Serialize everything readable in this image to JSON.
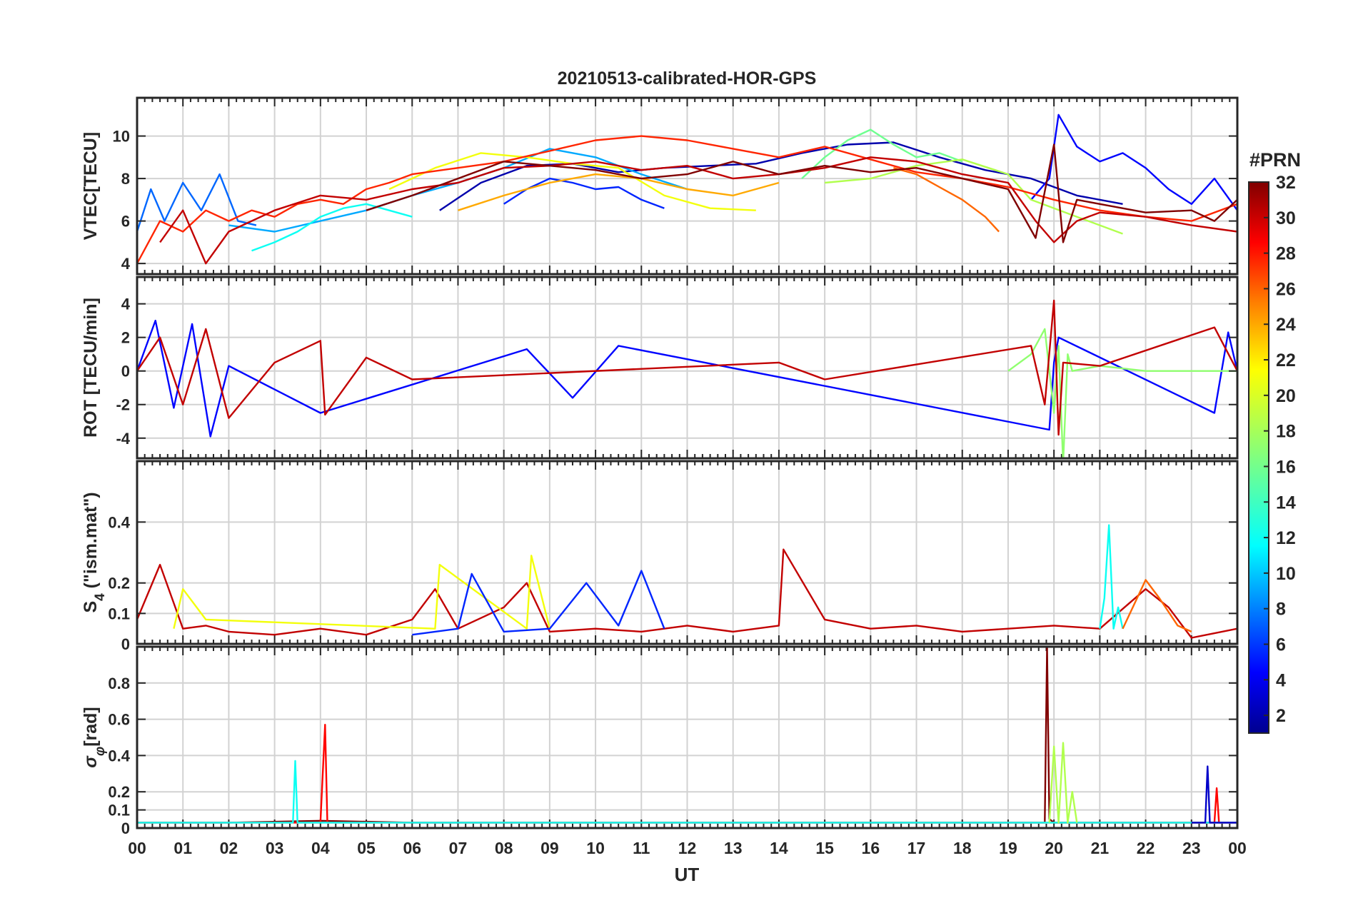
{
  "figure": {
    "title": "20210513-calibrated-HOR-GPS",
    "xlabel": "UT"
  },
  "chart_data": {
    "type": "line",
    "title": "20210513-calibrated-HOR-GPS",
    "xlabel": "UT",
    "xlim": [
      0,
      24
    ],
    "x_ticks": [
      0,
      1,
      2,
      3,
      4,
      5,
      6,
      7,
      8,
      9,
      10,
      11,
      12,
      13,
      14,
      15,
      16,
      17,
      18,
      19,
      20,
      21,
      22,
      23,
      24
    ],
    "x_tick_labels": [
      "00",
      "01",
      "02",
      "03",
      "04",
      "05",
      "06",
      "07",
      "08",
      "09",
      "10",
      "11",
      "12",
      "13",
      "14",
      "15",
      "16",
      "17",
      "18",
      "19",
      "20",
      "21",
      "22",
      "23",
      "00"
    ],
    "grid": true,
    "colorbar": {
      "label": "#PRN",
      "range": [
        1,
        32
      ],
      "ticks": [
        2,
        4,
        6,
        8,
        10,
        12,
        14,
        16,
        18,
        20,
        22,
        24,
        26,
        28,
        30,
        32
      ],
      "tick_labels": [
        "2",
        "4",
        "6",
        "8",
        "10",
        "12",
        "14",
        "16",
        "18",
        "20",
        "22",
        "24",
        "26",
        "28",
        "30",
        "32"
      ],
      "colormap": [
        "#00008f",
        "#0000ff",
        "#0080ff",
        "#00ffff",
        "#80ff80",
        "#ffff00",
        "#ff8000",
        "#ff0000",
        "#800000"
      ]
    },
    "panels": [
      {
        "id": "vtec",
        "ylabel": "VTEC[TECU]",
        "ylim": [
          3.5,
          11.8
        ],
        "y_ticks": [
          4,
          6,
          8,
          10
        ],
        "y_tick_labels": [
          "4",
          "6",
          "8",
          "10"
        ],
        "series": [
          {
            "prn": 2,
            "x": [
              6.6,
              7.5,
              8.5,
              9.5,
              10.5,
              11.5,
              12.5,
              13.5,
              14.5,
              15.5,
              16.5,
              17.5,
              18.5,
              19.5,
              20.5,
              21.5
            ],
            "values": [
              6.5,
              7.8,
              8.6,
              8.7,
              8.3,
              8.5,
              8.6,
              8.7,
              9.2,
              9.6,
              9.7,
              9.0,
              8.4,
              8.0,
              7.2,
              6.8
            ]
          },
          {
            "prn": 5,
            "x": [
              19.5,
              19.9,
              20.1,
              20.5,
              21.0,
              21.5,
              22.0,
              22.5,
              23.0,
              23.5,
              24.0
            ],
            "values": [
              7.0,
              8.0,
              11.0,
              9.5,
              8.8,
              9.2,
              8.5,
              7.5,
              6.8,
              8.0,
              6.5
            ]
          },
          {
            "prn": 6,
            "x": [
              8.0,
              8.5,
              9.0,
              9.5,
              10.0,
              10.5,
              11.0,
              11.5
            ],
            "values": [
              6.8,
              7.5,
              8.0,
              7.8,
              7.5,
              7.6,
              7.0,
              6.6
            ]
          },
          {
            "prn": 8,
            "x": [
              0.0,
              0.3,
              0.6,
              1.0,
              1.4,
              1.8,
              2.2,
              2.6
            ],
            "values": [
              5.5,
              7.5,
              6.0,
              7.8,
              6.5,
              8.2,
              6.0,
              5.8
            ]
          },
          {
            "prn": 10,
            "x": [
              2.0,
              3.0,
              4.0,
              5.0,
              6.0,
              7.0,
              8.0,
              9.0,
              10.0,
              11.0,
              12.0
            ],
            "values": [
              5.8,
              5.5,
              6.0,
              6.5,
              7.2,
              7.8,
              8.5,
              9.4,
              9.0,
              8.2,
              7.5
            ]
          },
          {
            "prn": 13,
            "x": [
              2.5,
              3.0,
              3.5,
              4.0,
              4.5,
              5.0,
              5.5,
              6.0
            ],
            "values": [
              4.6,
              5.0,
              5.5,
              6.2,
              6.6,
              6.8,
              6.5,
              6.2
            ]
          },
          {
            "prn": 16,
            "x": [
              14.5,
              15.0,
              15.5,
              16.0,
              16.5,
              17.0,
              17.5,
              18.0
            ],
            "values": [
              8.0,
              9.0,
              9.8,
              10.3,
              9.6,
              9.0,
              9.2,
              8.8
            ]
          },
          {
            "prn": 18,
            "x": [
              15.0,
              16.0,
              17.0,
              18.0,
              19.0,
              19.5,
              20.5,
              21.5
            ],
            "values": [
              7.8,
              8.0,
              8.6,
              8.9,
              8.2,
              7.0,
              6.2,
              5.4
            ]
          },
          {
            "prn": 20,
            "x": [
              5.5,
              6.5,
              7.5,
              8.5,
              9.5,
              10.5,
              11.5,
              12.5,
              13.5
            ],
            "values": [
              7.5,
              8.5,
              9.2,
              9.0,
              8.7,
              8.5,
              7.2,
              6.6,
              6.5
            ]
          },
          {
            "prn": 23,
            "x": [
              7.0,
              8.0,
              9.0,
              10.0,
              11.0,
              12.0,
              13.0,
              14.0
            ],
            "values": [
              6.5,
              7.2,
              7.8,
              8.2,
              8.0,
              7.5,
              7.2,
              7.8
            ]
          },
          {
            "prn": 25,
            "x": [
              16.5,
              17.0,
              17.5,
              18.0,
              18.5,
              18.8
            ],
            "values": [
              8.5,
              8.2,
              7.6,
              7.0,
              6.2,
              5.5
            ]
          },
          {
            "prn": 27,
            "x": [
              0.0,
              0.5,
              1.0,
              1.5,
              2.0,
              2.5,
              3.0,
              3.5,
              4.0,
              4.5,
              5.0,
              5.5,
              6.0,
              7.0,
              8.0,
              9.0,
              10.0,
              11.0,
              12.0,
              13.0,
              14.0,
              15.0,
              16.0,
              17.0,
              18.0,
              19.0,
              20.0,
              21.0,
              22.0,
              23.0,
              24.0
            ],
            "values": [
              4.0,
              6.0,
              5.5,
              6.5,
              6.0,
              6.5,
              6.2,
              6.8,
              7.0,
              6.8,
              7.5,
              7.8,
              8.2,
              8.5,
              8.8,
              9.3,
              9.8,
              10.0,
              9.8,
              9.4,
              9.0,
              9.5,
              8.9,
              8.3,
              8.0,
              7.6,
              7.0,
              6.5,
              6.2,
              6.0,
              6.8
            ]
          },
          {
            "prn": 30,
            "x": [
              0.5,
              1.0,
              1.5,
              2.0,
              3.0,
              4.0,
              5.0,
              6.0,
              7.0,
              8.0,
              9.0,
              10.0,
              11.0,
              12.0,
              13.0,
              14.0,
              15.0,
              16.0,
              17.0,
              18.0,
              19.0,
              19.6,
              20.0,
              20.5,
              21.0,
              22.0,
              23.0,
              24.0
            ],
            "values": [
              5.0,
              6.5,
              4.0,
              5.5,
              6.5,
              7.2,
              7.0,
              7.5,
              7.8,
              8.5,
              8.6,
              8.8,
              8.4,
              8.6,
              8.0,
              8.2,
              8.5,
              9.0,
              8.8,
              8.2,
              7.8,
              6.0,
              5.0,
              6.0,
              6.4,
              6.2,
              5.8,
              5.5
            ]
          },
          {
            "prn": 32,
            "x": [
              5.0,
              6.0,
              7.0,
              8.0,
              9.0,
              10.0,
              11.0,
              12.0,
              13.0,
              14.0,
              15.0,
              16.0,
              17.0,
              18.0,
              19.0,
              19.6,
              20.0,
              20.2,
              20.5,
              21.0,
              22.0,
              23.0,
              23.5,
              24.0
            ],
            "values": [
              6.5,
              7.2,
              8.0,
              8.8,
              8.6,
              8.4,
              8.0,
              8.2,
              8.8,
              8.2,
              8.6,
              8.3,
              8.5,
              8.0,
              7.5,
              5.2,
              9.6,
              5.0,
              7.0,
              6.8,
              6.4,
              6.5,
              6.0,
              7.0
            ]
          }
        ]
      },
      {
        "id": "rot",
        "ylabel": "ROT [TECU/min]",
        "ylim": [
          -5.2,
          5.6
        ],
        "y_ticks": [
          -4,
          -2,
          0,
          2,
          4
        ],
        "y_tick_labels": [
          "-4",
          "-2",
          "0",
          "2",
          "4"
        ],
        "series": [
          {
            "prn": 5,
            "x": [
              0.0,
              0.4,
              0.8,
              1.2,
              1.6,
              2.0,
              4.0,
              8.5,
              9.5,
              10.5,
              19.9,
              20.0,
              20.1,
              23.5,
              23.8,
              24.0
            ],
            "values": [
              0.0,
              3.0,
              -2.2,
              2.8,
              -3.9,
              0.3,
              -2.5,
              1.3,
              -1.6,
              1.5,
              -3.5,
              0.5,
              2.0,
              -2.5,
              2.3,
              0.0
            ]
          },
          {
            "prn": 17,
            "x": [
              19.0,
              19.5,
              19.8,
              20.0,
              20.1,
              20.2,
              20.3,
              20.4,
              21.0,
              22.0,
              24.0
            ],
            "values": [
              0.0,
              1.0,
              2.5,
              -2.5,
              1.5,
              -5.5,
              1.0,
              0.0,
              0.3,
              0.0,
              0.0
            ]
          },
          {
            "prn": 30,
            "x": [
              0.0,
              0.5,
              1.0,
              1.5,
              2.0,
              3.0,
              4.0,
              4.1,
              5.0,
              6.0,
              14.0,
              15.0,
              19.5,
              19.8,
              20.0,
              20.1,
              20.2,
              21.0,
              23.5,
              24.0
            ],
            "values": [
              0.0,
              2.0,
              -2.0,
              2.5,
              -2.8,
              0.5,
              1.8,
              -2.6,
              0.8,
              -0.5,
              0.5,
              -0.5,
              1.5,
              -2.0,
              4.2,
              -3.8,
              0.5,
              0.3,
              2.6,
              0.0
            ]
          }
        ]
      },
      {
        "id": "s4",
        "ylabel": "S4 (\"ism.mat\")",
        "ylabel_main": "S",
        "ylabel_sub": "4",
        "ylabel_rest": " (\"ism.mat\")",
        "ylim": [
          0,
          0.6
        ],
        "y_ticks": [
          0,
          0.1,
          0.2,
          0.4
        ],
        "y_tick_labels": [
          "0",
          "0.1",
          "0.2",
          "0.4"
        ],
        "series": [
          {
            "prn": 30,
            "x": [
              0.0,
              0.5,
              1.0,
              1.5,
              2.0,
              3.0,
              4.0,
              5.0,
              6.0,
              6.5,
              7.0,
              8.0,
              8.5,
              9.0,
              10.0,
              11.0,
              12.0,
              13.0,
              14.0,
              14.1,
              15.0,
              16.0,
              17.0,
              18.0,
              19.0,
              20.0,
              21.0,
              22.0,
              22.5,
              23.0,
              24.0
            ],
            "values": [
              0.08,
              0.26,
              0.05,
              0.06,
              0.04,
              0.03,
              0.05,
              0.03,
              0.08,
              0.18,
              0.05,
              0.12,
              0.2,
              0.04,
              0.05,
              0.04,
              0.06,
              0.04,
              0.06,
              0.31,
              0.08,
              0.05,
              0.06,
              0.04,
              0.05,
              0.06,
              0.05,
              0.18,
              0.12,
              0.02,
              0.05
            ]
          },
          {
            "prn": 20,
            "x": [
              0.8,
              1.0,
              1.5,
              6.5,
              6.6,
              8.5,
              8.6,
              9.0
            ],
            "values": [
              0.05,
              0.18,
              0.08,
              0.05,
              0.26,
              0.05,
              0.29,
              0.05
            ]
          },
          {
            "prn": 13,
            "x": [
              21.0,
              21.1,
              21.2,
              21.3,
              21.4,
              21.5
            ],
            "values": [
              0.05,
              0.15,
              0.39,
              0.05,
              0.12,
              0.05
            ]
          },
          {
            "prn": 6,
            "x": [
              6.0,
              7.0,
              7.3,
              8.0,
              9.0,
              9.8,
              10.5,
              11.0,
              11.5
            ],
            "values": [
              0.03,
              0.05,
              0.23,
              0.04,
              0.05,
              0.2,
              0.06,
              0.24,
              0.05
            ]
          },
          {
            "prn": 25,
            "x": [
              21.5,
              22.0,
              22.3,
              22.7,
              23.0
            ],
            "values": [
              0.05,
              0.21,
              0.15,
              0.06,
              0.04
            ]
          }
        ]
      },
      {
        "id": "sigma_phi",
        "ylabel": "σφ [rad]",
        "ylabel_main": "σ",
        "ylabel_sub": "φ",
        "ylabel_rest": "[rad]",
        "ylim": [
          0,
          1.0
        ],
        "y_ticks": [
          0,
          0.1,
          0.2,
          0.4,
          0.6,
          0.8
        ],
        "y_tick_labels": [
          "0",
          "0.1",
          "0.2",
          "0.4",
          "0.6",
          "0.8"
        ],
        "series": [
          {
            "prn": 32,
            "x": [
              0.0,
              2.0,
              4.0,
              6.0,
              8.0,
              10.0,
              12.0,
              14.0,
              16.0,
              18.0,
              19.8,
              19.85,
              19.9,
              20.0,
              22.0,
              24.0
            ],
            "values": [
              0.03,
              0.03,
              0.04,
              0.03,
              0.03,
              0.03,
              0.03,
              0.03,
              0.03,
              0.03,
              0.03,
              1.0,
              0.05,
              0.03,
              0.03,
              0.03
            ]
          },
          {
            "prn": 28,
            "x": [
              0.0,
              4.0,
              4.1,
              4.15,
              4.2,
              8.0,
              12.0,
              16.0,
              20.0,
              23.5,
              23.55,
              23.6,
              24.0
            ],
            "values": [
              0.03,
              0.03,
              0.57,
              0.03,
              0.03,
              0.03,
              0.03,
              0.03,
              0.03,
              0.03,
              0.22,
              0.03,
              0.03
            ]
          },
          {
            "prn": 13,
            "x": [
              0.0,
              2.5,
              3.4,
              3.45,
              3.5,
              24.0
            ],
            "values": [
              0.03,
              0.03,
              0.03,
              0.37,
              0.03,
              0.03
            ]
          },
          {
            "prn": 18,
            "x": [
              19.9,
              20.0,
              20.1,
              20.2,
              20.3,
              20.4,
              20.5
            ],
            "values": [
              0.03,
              0.45,
              0.03,
              0.47,
              0.03,
              0.2,
              0.03
            ]
          },
          {
            "prn": 3,
            "x": [
              23.0,
              23.3,
              23.35,
              23.4,
              24.0
            ],
            "values": [
              0.03,
              0.03,
              0.34,
              0.03,
              0.03
            ]
          }
        ]
      }
    ]
  }
}
